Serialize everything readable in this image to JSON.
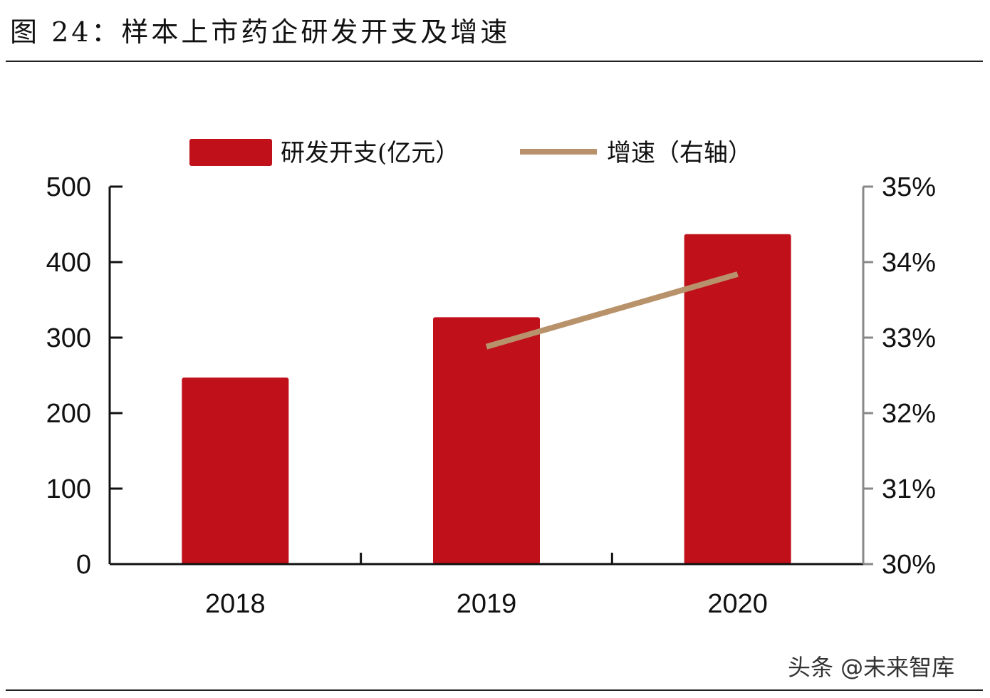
{
  "figure": {
    "title": "图 24：样本上市药企研发开支及增速",
    "watermark": "头条 @未来智库"
  },
  "colors": {
    "bar": "#c0111b",
    "line": "#b8926a",
    "axis_left": "#111111",
    "axis_right": "#888888"
  },
  "chart_data": {
    "type": "bar",
    "categories": [
      "2018",
      "2019",
      "2020"
    ],
    "series": [
      {
        "name": "研发开支(亿元）",
        "type": "bar",
        "axis": "left",
        "values": [
          247,
          327,
          437
        ]
      },
      {
        "name": "增速（右轴）",
        "type": "line",
        "axis": "right",
        "values": [
          null,
          0.3288,
          0.3384
        ]
      }
    ],
    "y_left": {
      "range": [
        0,
        500
      ],
      "ticks": [
        0,
        100,
        200,
        300,
        400,
        500
      ],
      "tick_labels": [
        "0",
        "100",
        "200",
        "300",
        "400",
        "500"
      ]
    },
    "y_right": {
      "range": [
        0.3,
        0.35
      ],
      "ticks": [
        0.3,
        0.31,
        0.32,
        0.33,
        0.34,
        0.35
      ],
      "tick_labels": [
        "30%",
        "31%",
        "32%",
        "33%",
        "34%",
        "35%"
      ]
    },
    "legend": {
      "position": "top"
    },
    "grid": false
  }
}
